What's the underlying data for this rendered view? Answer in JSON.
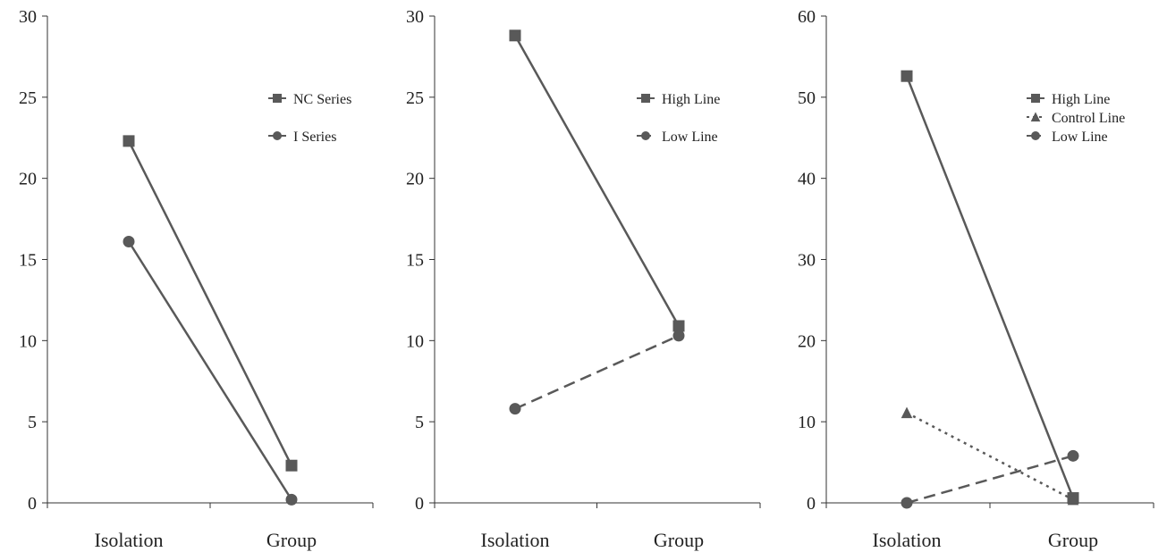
{
  "chart_data": [
    {
      "type": "line",
      "categories": [
        "Isolation",
        "Group"
      ],
      "ylim": [
        0,
        30
      ],
      "yticks": [
        0,
        5,
        10,
        15,
        20,
        25,
        30
      ],
      "grid": false,
      "legend_position": "top-right",
      "series": [
        {
          "name": "NC Series",
          "values": [
            22.3,
            2.3
          ],
          "marker": "square",
          "dash": "solid",
          "color": "#595959"
        },
        {
          "name": "I Series",
          "values": [
            16.1,
            0.2
          ],
          "marker": "circle",
          "dash": "solid",
          "color": "#595959"
        }
      ]
    },
    {
      "type": "line",
      "categories": [
        "Isolation",
        "Group"
      ],
      "ylim": [
        0,
        30
      ],
      "yticks": [
        0,
        5,
        10,
        15,
        20,
        25,
        30
      ],
      "grid": false,
      "legend_position": "top-right",
      "series": [
        {
          "name": "High Line",
          "values": [
            28.8,
            10.9
          ],
          "marker": "square",
          "dash": "solid",
          "color": "#595959"
        },
        {
          "name": "Low Line",
          "values": [
            5.8,
            10.3
          ],
          "marker": "circle",
          "dash": "dashed",
          "color": "#595959"
        }
      ]
    },
    {
      "type": "line",
      "categories": [
        "Isolation",
        "Group"
      ],
      "ylim": [
        0,
        60
      ],
      "yticks": [
        0,
        10,
        20,
        30,
        40,
        50,
        60
      ],
      "grid": false,
      "legend_position": "top-right",
      "series": [
        {
          "name": "High Line",
          "values": [
            52.6,
            0.6
          ],
          "marker": "square",
          "dash": "solid",
          "color": "#595959"
        },
        {
          "name": "Control Line",
          "values": [
            11.1,
            0.4
          ],
          "marker": "triangle",
          "dash": "dotted",
          "color": "#595959"
        },
        {
          "name": "Low Line",
          "values": [
            0.0,
            5.8
          ],
          "marker": "circle",
          "dash": "dashed",
          "color": "#595959"
        }
      ]
    }
  ]
}
